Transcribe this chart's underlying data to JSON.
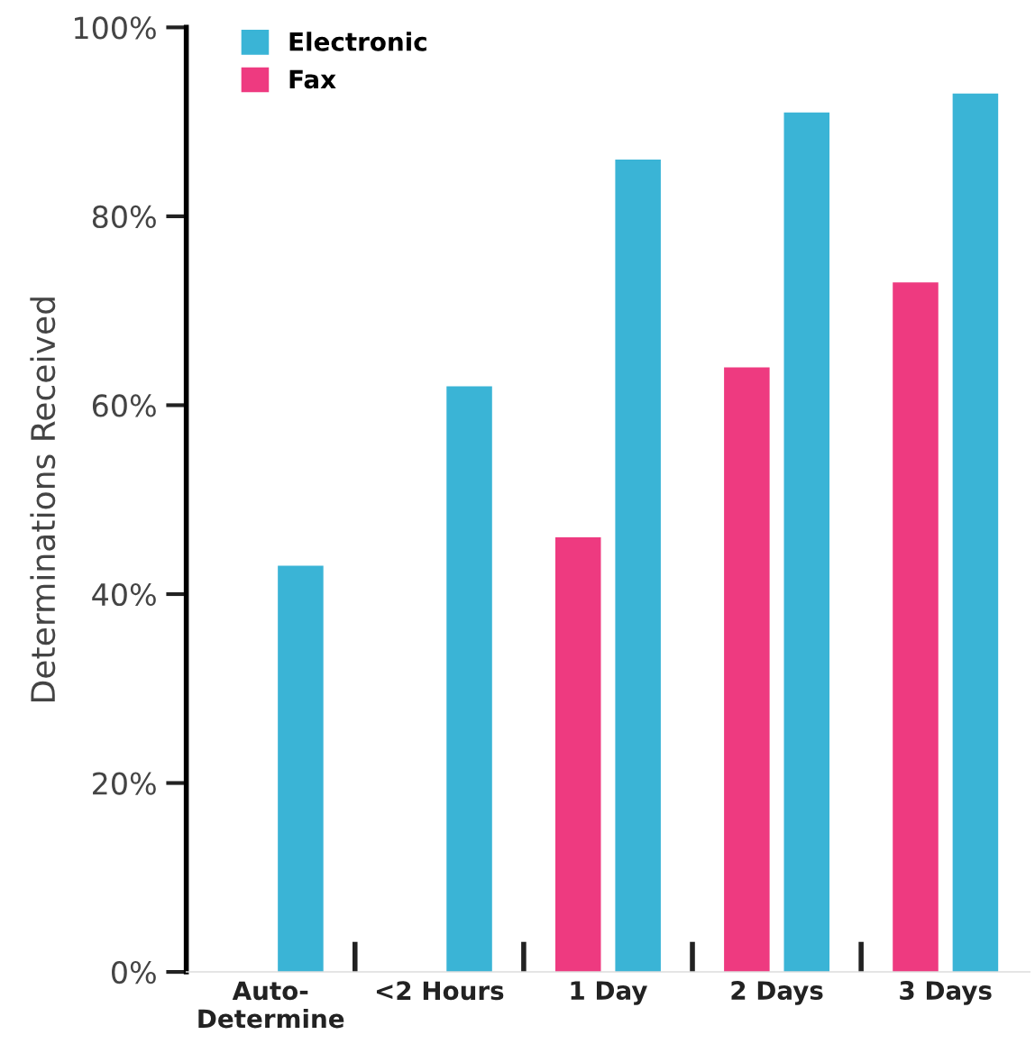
{
  "chart_data": {
    "type": "bar",
    "ylabel": "Determinations Received",
    "categories": [
      "Auto-\nDetermine",
      "<2 Hours",
      "1 Day",
      "2 Days",
      "3 Days"
    ],
    "series": [
      {
        "name": "Fax",
        "color": "#ee3a80",
        "values": [
          null,
          null,
          46,
          64,
          73
        ]
      },
      {
        "name": "Electronic",
        "color": "#3ab4d6",
        "values": [
          43,
          62,
          86,
          91,
          93
        ]
      }
    ],
    "ylim": [
      0,
      100
    ],
    "yticks": [
      {
        "value": 0,
        "label": "0%"
      },
      {
        "value": 20,
        "label": "20%"
      },
      {
        "value": 40,
        "label": "40%"
      },
      {
        "value": 60,
        "label": "60%"
      },
      {
        "value": 80,
        "label": "80%"
      },
      {
        "value": 100,
        "label": "100%"
      }
    ],
    "grid": false,
    "legend": "top left"
  }
}
